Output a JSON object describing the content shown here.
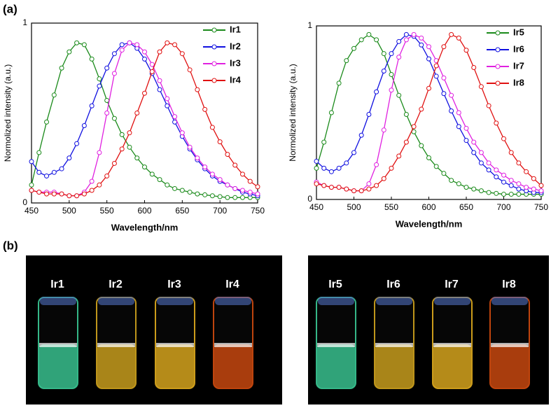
{
  "panel_labels": [
    "(a)",
    "(b)"
  ],
  "chart_data": [
    {
      "type": "line",
      "xlabel": "Wavelength/nm",
      "ylabel": "Normolized intensity (a.u.)",
      "xlim": [
        450,
        750
      ],
      "xticks": [
        450,
        500,
        550,
        600,
        650,
        700,
        750
      ],
      "ylim": [
        0,
        1
      ],
      "yticks": [
        0,
        1
      ],
      "legend": "upper right",
      "x": [
        450,
        460,
        470,
        480,
        490,
        500,
        510,
        520,
        530,
        540,
        550,
        560,
        570,
        580,
        590,
        600,
        610,
        620,
        630,
        640,
        650,
        660,
        670,
        680,
        690,
        700,
        710,
        720,
        730,
        740,
        750
      ],
      "series": [
        {
          "name": "Ir1",
          "color": "#1a8a1a",
          "values": [
            0.1,
            0.28,
            0.45,
            0.6,
            0.75,
            0.84,
            0.89,
            0.88,
            0.8,
            0.69,
            0.57,
            0.47,
            0.38,
            0.31,
            0.25,
            0.2,
            0.16,
            0.13,
            0.1,
            0.08,
            0.07,
            0.06,
            0.05,
            0.045,
            0.04,
            0.035,
            0.03,
            0.03,
            0.03,
            0.03,
            0.03
          ]
        },
        {
          "name": "Ir2",
          "color": "#1010e0",
          "values": [
            0.23,
            0.17,
            0.15,
            0.17,
            0.19,
            0.25,
            0.33,
            0.43,
            0.54,
            0.65,
            0.75,
            0.83,
            0.88,
            0.89,
            0.86,
            0.8,
            0.72,
            0.63,
            0.54,
            0.45,
            0.37,
            0.3,
            0.24,
            0.19,
            0.15,
            0.12,
            0.1,
            0.08,
            0.06,
            0.05,
            0.04
          ]
        },
        {
          "name": "Ir3",
          "color": "#e020e0",
          "values": [
            0.07,
            0.06,
            0.06,
            0.06,
            0.05,
            0.04,
            0.04,
            0.06,
            0.12,
            0.28,
            0.5,
            0.72,
            0.85,
            0.89,
            0.88,
            0.84,
            0.77,
            0.68,
            0.58,
            0.48,
            0.39,
            0.31,
            0.25,
            0.2,
            0.16,
            0.13,
            0.1,
            0.08,
            0.07,
            0.06,
            0.05
          ]
        },
        {
          "name": "Ir4",
          "color": "#e01010",
          "values": [
            0.07,
            0.06,
            0.05,
            0.05,
            0.05,
            0.04,
            0.04,
            0.05,
            0.07,
            0.1,
            0.15,
            0.22,
            0.3,
            0.39,
            0.5,
            0.61,
            0.73,
            0.84,
            0.89,
            0.88,
            0.83,
            0.74,
            0.63,
            0.52,
            0.42,
            0.34,
            0.27,
            0.21,
            0.16,
            0.12,
            0.09
          ]
        }
      ]
    },
    {
      "type": "line",
      "xlabel": "Wavelength/nm",
      "ylabel": "Normolized intensity (a.u.)",
      "xlim": [
        450,
        750
      ],
      "xticks": [
        450,
        500,
        550,
        600,
        650,
        700,
        750
      ],
      "ylim": [
        0,
        1
      ],
      "yticks": [
        0,
        1
      ],
      "legend": "upper right",
      "x": [
        450,
        460,
        470,
        480,
        490,
        500,
        510,
        520,
        530,
        540,
        550,
        560,
        570,
        580,
        590,
        600,
        610,
        620,
        630,
        640,
        650,
        660,
        670,
        680,
        690,
        700,
        710,
        720,
        730,
        740,
        750
      ],
      "series": [
        {
          "name": "Ir5",
          "color": "#1a8a1a",
          "values": [
            0.18,
            0.33,
            0.5,
            0.67,
            0.8,
            0.87,
            0.92,
            0.95,
            0.92,
            0.84,
            0.72,
            0.6,
            0.49,
            0.39,
            0.31,
            0.24,
            0.19,
            0.15,
            0.11,
            0.09,
            0.07,
            0.06,
            0.05,
            0.04,
            0.035,
            0.03,
            0.03,
            0.03,
            0.03,
            0.03,
            0.03
          ]
        },
        {
          "name": "Ir6",
          "color": "#1010e0",
          "values": [
            0.22,
            0.18,
            0.16,
            0.18,
            0.21,
            0.27,
            0.37,
            0.49,
            0.62,
            0.74,
            0.84,
            0.91,
            0.95,
            0.94,
            0.89,
            0.81,
            0.71,
            0.61,
            0.51,
            0.42,
            0.34,
            0.27,
            0.21,
            0.17,
            0.13,
            0.1,
            0.08,
            0.06,
            0.05,
            0.04,
            0.04
          ]
        },
        {
          "name": "Ir7",
          "color": "#e020e0",
          "values": [
            0.1,
            0.08,
            0.07,
            0.07,
            0.06,
            0.05,
            0.05,
            0.09,
            0.2,
            0.4,
            0.63,
            0.82,
            0.92,
            0.95,
            0.93,
            0.88,
            0.8,
            0.7,
            0.6,
            0.5,
            0.41,
            0.33,
            0.27,
            0.21,
            0.17,
            0.14,
            0.11,
            0.09,
            0.07,
            0.06,
            0.05
          ]
        },
        {
          "name": "Ir8",
          "color": "#e01010",
          "values": [
            0.09,
            0.08,
            0.07,
            0.07,
            0.06,
            0.05,
            0.05,
            0.06,
            0.08,
            0.12,
            0.18,
            0.25,
            0.33,
            0.42,
            0.52,
            0.64,
            0.77,
            0.88,
            0.95,
            0.93,
            0.86,
            0.76,
            0.65,
            0.54,
            0.44,
            0.35,
            0.27,
            0.21,
            0.16,
            0.12,
            0.08
          ]
        }
      ]
    }
  ],
  "photos": [
    {
      "labels": [
        "Ir1",
        "Ir2",
        "Ir3",
        "Ir4"
      ]
    },
    {
      "labels": [
        "Ir5",
        "Ir6",
        "Ir7",
        "Ir8"
      ]
    }
  ]
}
